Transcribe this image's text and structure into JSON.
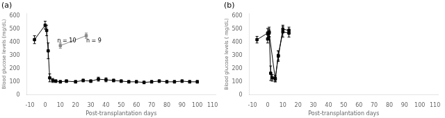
{
  "chart_data": [
    {
      "type": "line",
      "title": "(a)",
      "xlabel": "Post-transplantation days",
      "ylabel": "Blood glucose levels (mg/dL)",
      "xlim": [
        -12,
        112
      ],
      "ylim": [
        0,
        620
      ],
      "xticks": [
        -10,
        0,
        10,
        20,
        30,
        40,
        50,
        60,
        70,
        80,
        90,
        100,
        110
      ],
      "yticks": [
        0,
        100,
        200,
        300,
        400,
        500,
        600
      ],
      "grid": false,
      "marker": "square",
      "series": [
        {
          "color": "#000000",
          "x": [
            -7,
            0,
            1,
            2,
            3,
            5,
            7,
            10,
            14,
            20,
            25,
            30,
            35,
            40,
            45,
            50,
            55,
            60,
            65,
            70,
            75,
            80,
            85,
            90,
            95,
            100
          ],
          "values": [
            420,
            530,
            490,
            335,
            130,
            110,
            105,
            100,
            105,
            100,
            110,
            105,
            120,
            115,
            110,
            105,
            100,
            100,
            95,
            100,
            105,
            100,
            100,
            105,
            100,
            100
          ],
          "yerr": [
            30,
            30,
            40,
            60,
            30,
            15,
            10,
            10,
            10,
            10,
            10,
            10,
            15,
            15,
            10,
            10,
            10,
            10,
            10,
            10,
            10,
            10,
            10,
            10,
            10,
            10
          ]
        },
        {
          "color": "#888888",
          "x": [
            10,
            27
          ],
          "values": [
            375,
            450
          ],
          "yerr": [
            20,
            20
          ]
        }
      ],
      "annotations": [
        {
          "text": "n = 10",
          "x": 8,
          "y": 390
        },
        {
          "text": "n = 9",
          "x": 27,
          "y": 390
        }
      ]
    },
    {
      "type": "line",
      "title": "(b)",
      "xlabel": "Post-transplantation days",
      "ylabel": "Blood glucose levels ( mg/dL)",
      "xlim": [
        -12,
        112
      ],
      "ylim": [
        0,
        620
      ],
      "xticks": [
        -10,
        0,
        10,
        20,
        30,
        40,
        50,
        60,
        70,
        80,
        90,
        100,
        110
      ],
      "yticks": [
        0,
        100,
        200,
        300,
        400,
        500,
        600
      ],
      "grid": false,
      "marker": "square",
      "series": [
        {
          "color": "#000000",
          "x": [
            -7,
            0,
            1,
            2,
            3,
            5,
            7,
            10,
            14
          ],
          "values": [
            420,
            470,
            480,
            165,
            130,
            125,
            295,
            500,
            490
          ],
          "yerr": [
            25,
            35,
            35,
            55,
            25,
            25,
            40,
            30,
            25
          ]
        },
        {
          "color": "#000000",
          "x": [
            0,
            1,
            5,
            7,
            10,
            14
          ],
          "values": [
            425,
            470,
            120,
            300,
            480,
            470
          ],
          "yerr": [
            30,
            30,
            20,
            35,
            40,
            30
          ]
        }
      ]
    }
  ]
}
